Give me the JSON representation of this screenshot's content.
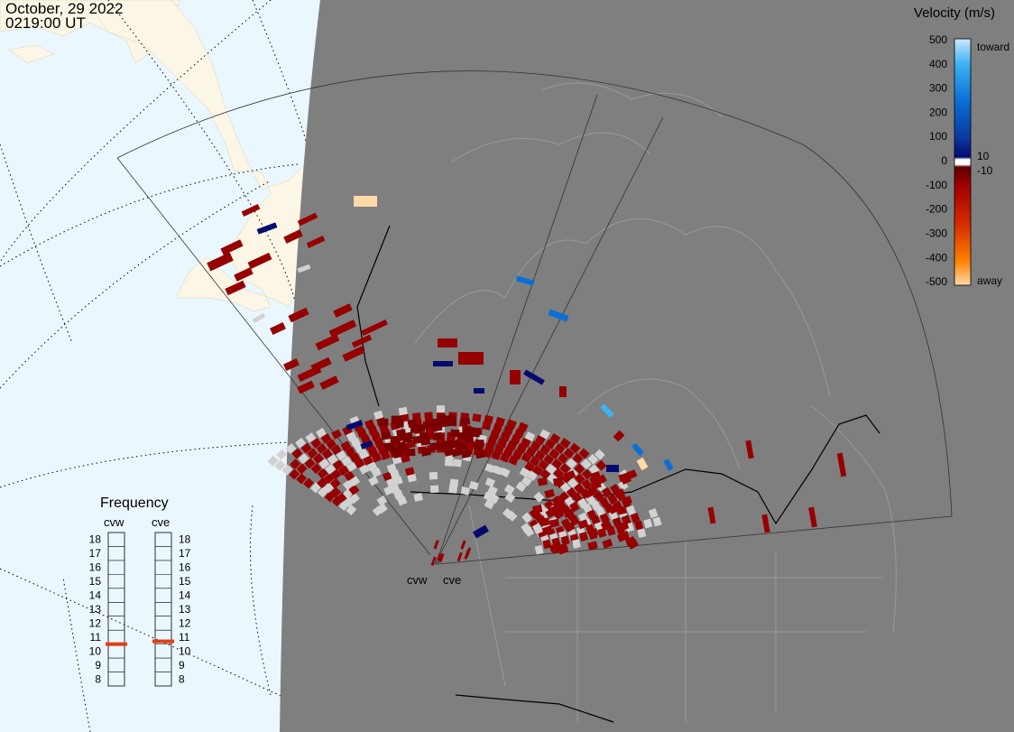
{
  "header": {
    "date": "October, 29 2022",
    "time": "0219:00 UT"
  },
  "colors": {
    "ocean": "#ebf7ff",
    "land_daylight": "#fbf6e6",
    "night_shade": "#7f7f7f",
    "ground_scatter": "#d2d2d2",
    "boundary_line": "#000000"
  },
  "velocity_scale": {
    "title": "Velocity (m/s)",
    "ticks": [
      "500",
      "400",
      "300",
      "200",
      "100",
      "0",
      "-100",
      "-200",
      "-300",
      "-400",
      "-500"
    ],
    "toward_label": "toward",
    "away_label": "away",
    "near_zero_positive": "10",
    "near_zero_negative": "-10",
    "color_stops": [
      "#cce9ff",
      "#3fb3f2",
      "#0a6fd6",
      "#0a3aa0",
      "#050a6e",
      "#5c0000",
      "#a40000",
      "#d42a00",
      "#ff8000",
      "#ffd9a8"
    ]
  },
  "frequency": {
    "title": "Frequency",
    "radars": [
      {
        "code": "cvw",
        "value_mhz": 10.5
      },
      {
        "code": "cve",
        "value_mhz": 10.7
      }
    ],
    "ticks": [
      "18",
      "17",
      "16",
      "15",
      "14",
      "13",
      "12",
      "11",
      "10",
      "9",
      "8"
    ],
    "marker_color": "#e04010"
  },
  "radar_sites": [
    {
      "code": "cvw",
      "label": "cvw"
    },
    {
      "code": "cve",
      "label": "cve"
    }
  ]
}
